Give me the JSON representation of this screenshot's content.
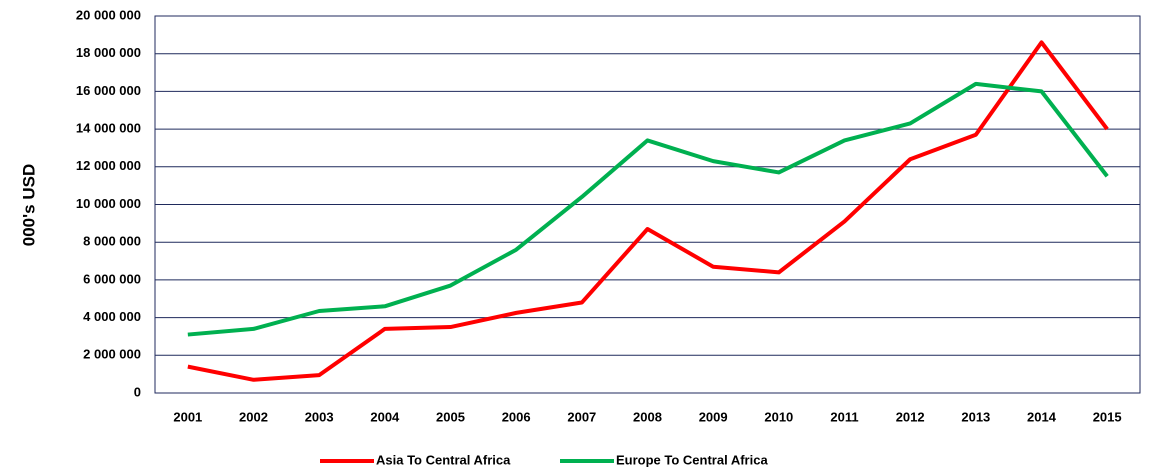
{
  "chart_data": {
    "type": "line",
    "y_label": "000's USD",
    "categories": [
      "2001",
      "2002",
      "2003",
      "2004",
      "2005",
      "2006",
      "2007",
      "2008",
      "2009",
      "2010",
      "2011",
      "2012",
      "2013",
      "2014",
      "2015"
    ],
    "series": [
      {
        "name": "Asia To Central Africa",
        "color": "#ff0000",
        "values": [
          1400000,
          700000,
          950000,
          3400000,
          3500000,
          4250000,
          4800000,
          8700000,
          6700000,
          6400000,
          9100000,
          12400000,
          13700000,
          18600000,
          14000000
        ]
      },
      {
        "name": "Europe To Central Africa",
        "color": "#00b050",
        "values": [
          3100000,
          3400000,
          4350000,
          4600000,
          5700000,
          7600000,
          10400000,
          13400000,
          12300000,
          11700000,
          13400000,
          14300000,
          16400000,
          16000000,
          11500000
        ]
      }
    ],
    "ylim": [
      0,
      20000000
    ],
    "yticks": [
      0,
      {
        "value": 2000000,
        "label": "2 000 000"
      },
      {
        "value": 4000000,
        "label": "4 000 000"
      },
      {
        "value": 6000000,
        "label": "6 000 000"
      },
      {
        "value": 8000000,
        "label": "8 000 000"
      },
      {
        "value": 10000000,
        "label": "10 000 000"
      },
      {
        "value": 12000000,
        "label": "12 000 000"
      },
      {
        "value": 14000000,
        "label": "14 000 000"
      },
      {
        "value": 16000000,
        "label": "16 000 000"
      },
      {
        "value": 18000000,
        "label": "18 000 000"
      },
      {
        "value": 20000000,
        "label": "20 000 000"
      }
    ],
    "grid": true,
    "legend": "bottom"
  }
}
